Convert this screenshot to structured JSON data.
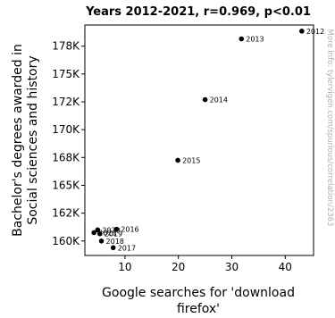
{
  "chart_data": {
    "type": "scatter",
    "title": "Years 2012-2021, r=0.969, p<0.01",
    "xlabel": [
      "Google searches for 'download",
      "firefox'"
    ],
    "ylabel": [
      "Bachelor's degrees awarded in",
      "Social sciences and history"
    ],
    "xlim": [
      2.5,
      45.3
    ],
    "ylim": [
      158700,
      179400
    ],
    "xticks": [
      {
        "value": 10,
        "label": "10"
      },
      {
        "value": 20,
        "label": "20"
      },
      {
        "value": 30,
        "label": "30"
      },
      {
        "value": 40,
        "label": "40"
      }
    ],
    "yticks": [
      {
        "value": 160000,
        "label": "160K"
      },
      {
        "value": 162500,
        "label": "162K"
      },
      {
        "value": 165000,
        "label": "165K"
      },
      {
        "value": 167500,
        "label": "168K"
      },
      {
        "value": 170000,
        "label": "170K"
      },
      {
        "value": 172500,
        "label": "172K"
      },
      {
        "value": 175000,
        "label": "175K"
      },
      {
        "value": 177500,
        "label": "178K"
      }
    ],
    "points": [
      {
        "label": "2012",
        "x": 43.1,
        "y": 178850
      },
      {
        "label": "2013",
        "x": 31.8,
        "y": 178150
      },
      {
        "label": "2014",
        "x": 25.0,
        "y": 172700
      },
      {
        "label": "2015",
        "x": 19.9,
        "y": 167250
      },
      {
        "label": "2016",
        "x": 8.4,
        "y": 161050
      },
      {
        "label": "2017",
        "x": 7.8,
        "y": 159400
      },
      {
        "label": "2018",
        "x": 5.6,
        "y": 160000
      },
      {
        "label": "2019",
        "x": 5.3,
        "y": 160650
      },
      {
        "label": "2020",
        "x": 4.9,
        "y": 161000
      },
      {
        "label": "2021",
        "x": 4.2,
        "y": 160750
      }
    ],
    "grid": false,
    "marker_color": "#000000"
  },
  "watermark": "More info: tylervigen.com/spurious/correlation/2363"
}
